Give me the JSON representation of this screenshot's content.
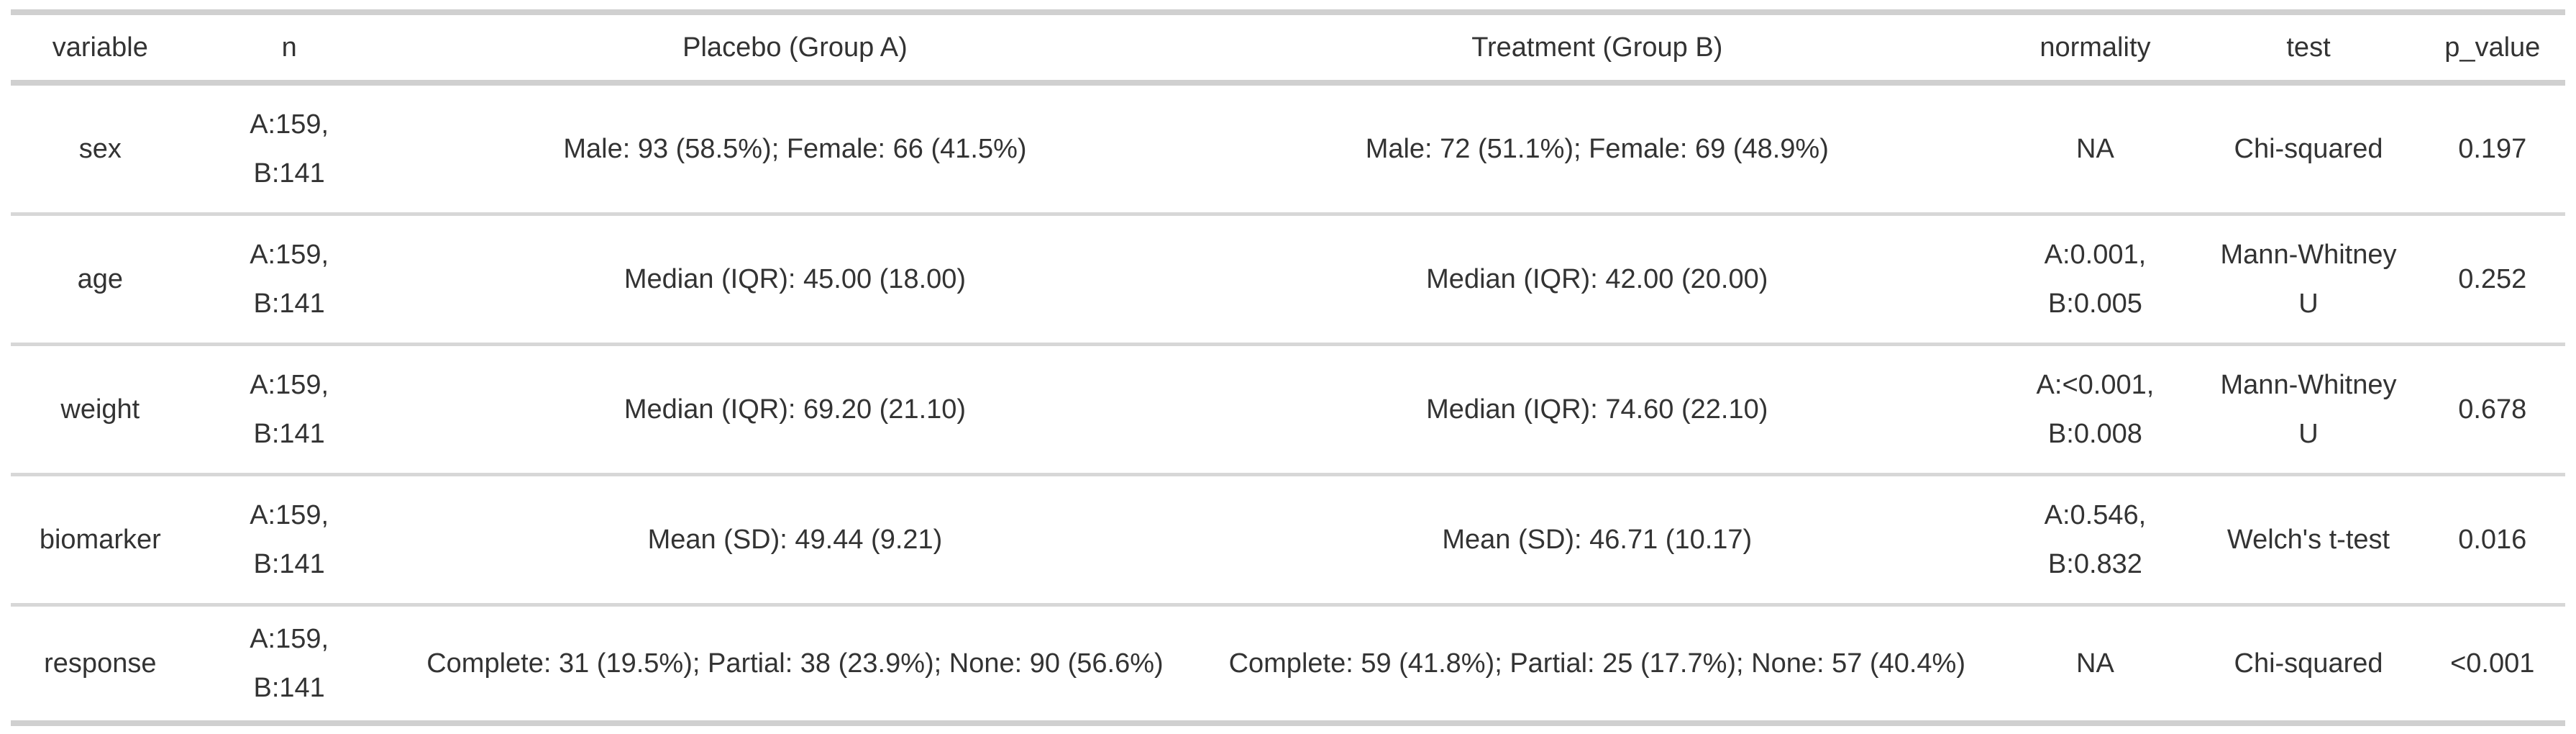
{
  "colors": {
    "background": "#ffffff",
    "text": "#333333",
    "rule_heavy": "#d0d0d0",
    "rule_light": "#d7d7d7"
  },
  "chart_data": {
    "type": "table",
    "columns": [
      "variable",
      "n",
      "Placebo (Group A)",
      "Treatment (Group B)",
      "normality",
      "test",
      "p_value"
    ],
    "rows": [
      [
        "sex",
        "A:159, B:141",
        "Male: 93 (58.5%); Female: 66 (41.5%)",
        "Male: 72 (51.1%); Female: 69 (48.9%)",
        "NA",
        "Chi-squared",
        "0.197"
      ],
      [
        "age",
        "A:159, B:141",
        "Median (IQR): 45.00 (18.00)",
        "Median (IQR): 42.00 (20.00)",
        "A:0.001, B:0.005",
        "Mann-Whitney U",
        "0.252"
      ],
      [
        "weight",
        "A:159, B:141",
        "Median (IQR): 69.20 (21.10)",
        "Median (IQR): 74.60 (22.10)",
        "A:<0.001, B:0.008",
        "Mann-Whitney U",
        "0.678"
      ],
      [
        "biomarker",
        "A:159, B:141",
        "Mean (SD): 49.44 (9.21)",
        "Mean (SD): 46.71 (10.17)",
        "A:0.546, B:0.832",
        "Welch's t-test",
        "0.016"
      ],
      [
        "response",
        "A:159, B:141",
        "Complete: 31 (19.5%); Partial: 38 (23.9%); None: 90 (56.6%)",
        "Complete: 59 (41.8%); Partial: 25 (17.7%); None: 57 (40.4%)",
        "NA",
        "Chi-squared",
        "<0.001"
      ]
    ],
    "layout": {
      "grid": "horizontal-rules-only",
      "header_position": "top",
      "text_align": "center"
    }
  }
}
